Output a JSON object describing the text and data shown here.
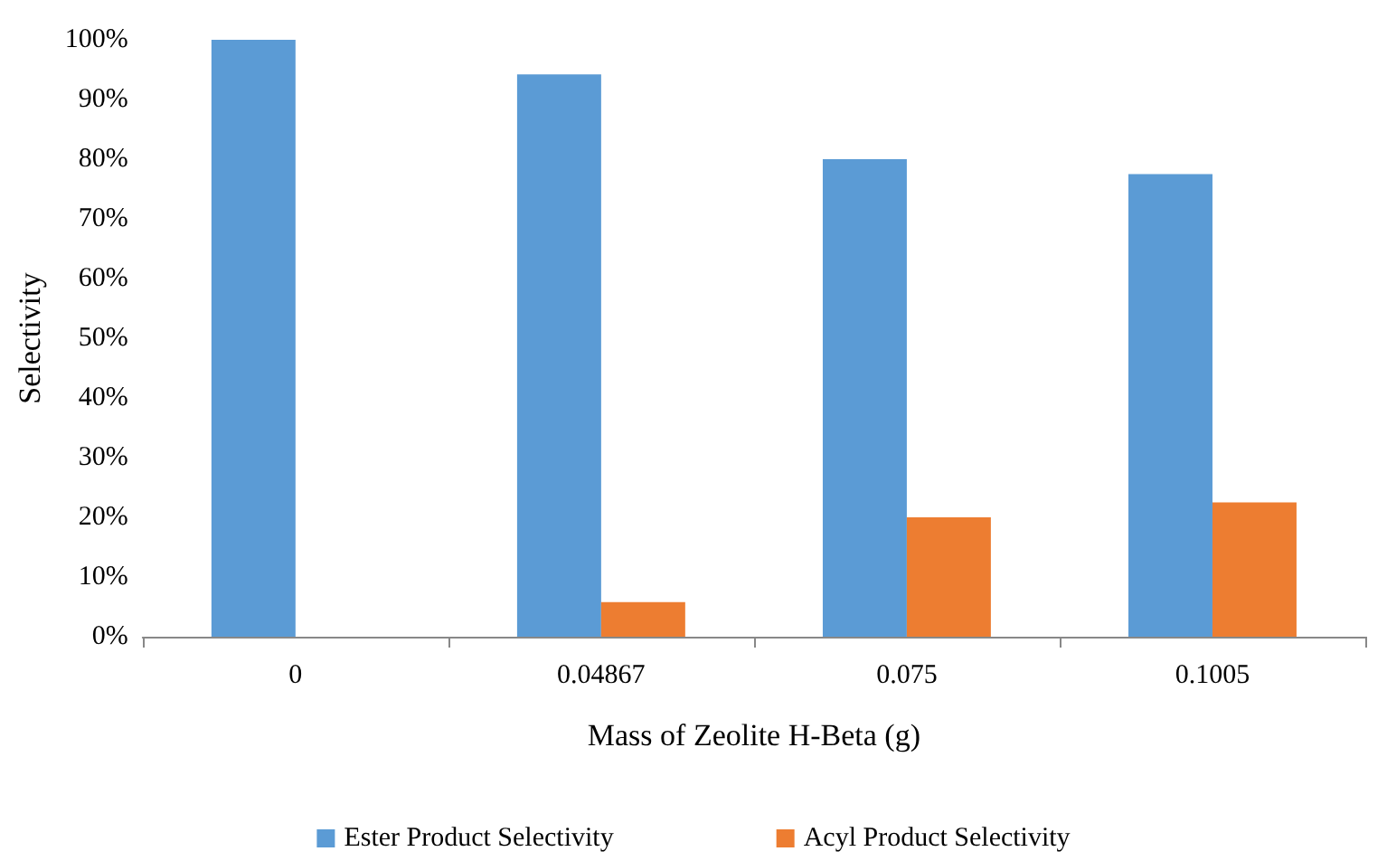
{
  "chart_data": {
    "type": "bar",
    "xlabel": "Mass of Zeolite H-Beta (g)",
    "ylabel": "Selectivity",
    "categories": [
      "0",
      "0.04867",
      "0.075",
      "0.1005"
    ],
    "series": [
      {
        "name": "Ester Product Selectivity",
        "color": "#5b9bd5",
        "values": [
          100,
          94.2,
          80,
          77.5
        ]
      },
      {
        "name": "Acyl Product Selectivity",
        "color": "#ed7d31",
        "values": [
          0,
          5.8,
          20,
          22.5
        ]
      }
    ],
    "ylim": [
      0,
      100
    ],
    "yticks": [
      {
        "value": 0,
        "label": "0%"
      },
      {
        "value": 10,
        "label": "10%"
      },
      {
        "value": 20,
        "label": "20%"
      },
      {
        "value": 30,
        "label": "30%"
      },
      {
        "value": 40,
        "label": "40%"
      },
      {
        "value": 50,
        "label": "50%"
      },
      {
        "value": 60,
        "label": "60%"
      },
      {
        "value": 70,
        "label": "70%"
      },
      {
        "value": 80,
        "label": "80%"
      },
      {
        "value": 90,
        "label": "90%"
      },
      {
        "value": 100,
        "label": "100%"
      }
    ],
    "grid": false,
    "legend": "bottom"
  }
}
